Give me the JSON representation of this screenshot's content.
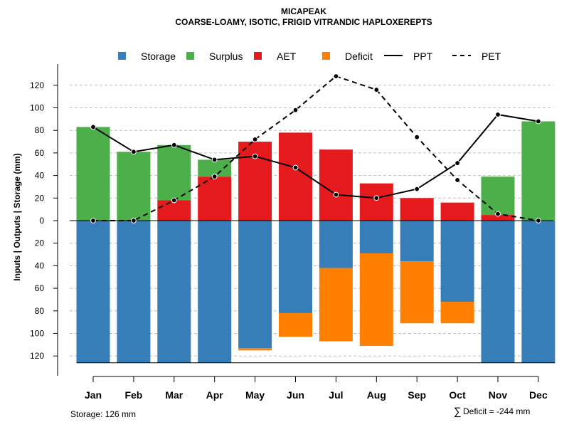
{
  "chart_data": {
    "type": "bar",
    "title": "MICAPEAK",
    "subtitle": "COARSE-LOAMY, ISOTIC, FRIGID VITRANDIC HAPLOXEREPTS",
    "ylabel": "Inputs | Outputs | Storage    (mm)",
    "xlabel": "",
    "ylim": [
      -126,
      128
    ],
    "y_tick_values": [
      -120,
      -100,
      -80,
      -60,
      -40,
      -20,
      0,
      20,
      40,
      60,
      80,
      100,
      120
    ],
    "y_tick_labels": [
      "120",
      "100",
      "80",
      "60",
      "40",
      "20",
      "0",
      "20",
      "40",
      "60",
      "80",
      "100",
      "120"
    ],
    "grid": "horizontal dashed",
    "legend_position": "top",
    "categories": [
      "Jan",
      "Feb",
      "Mar",
      "Apr",
      "May",
      "Jun",
      "Jul",
      "Aug",
      "Sep",
      "Oct",
      "Nov",
      "Dec"
    ],
    "series": [
      {
        "name": "Storage",
        "color": "#377EB8",
        "values": [
          126,
          126,
          126,
          126,
          113,
          82,
          42,
          29,
          36,
          72,
          126,
          126
        ]
      },
      {
        "name": "Surplus",
        "color": "#4DAF4A",
        "values": [
          83,
          61,
          49,
          15,
          0,
          0,
          0,
          0,
          0,
          0,
          34,
          88
        ]
      },
      {
        "name": "AET",
        "color": "#E41A1C",
        "values": [
          0,
          0,
          18,
          39,
          70,
          78,
          63,
          33,
          20,
          16,
          5,
          0
        ]
      },
      {
        "name": "Deficit",
        "color": "#FF7F00",
        "values": [
          0,
          0,
          0,
          0,
          2,
          21,
          65,
          82,
          55,
          19,
          0,
          0
        ]
      },
      {
        "name": "PPT",
        "style": "solid",
        "values": [
          83,
          61,
          67,
          54,
          57,
          47,
          23,
          20,
          28,
          51,
          94,
          88
        ]
      },
      {
        "name": "PET",
        "style": "dashed",
        "values": [
          0,
          0,
          18,
          39,
          72,
          98,
          128,
          116,
          74,
          36,
          6,
          0
        ]
      }
    ],
    "annotations": {
      "storage": "Storage: 126 mm",
      "deficit_symbol": "∑",
      "deficit": "Deficit = -244 mm"
    }
  }
}
